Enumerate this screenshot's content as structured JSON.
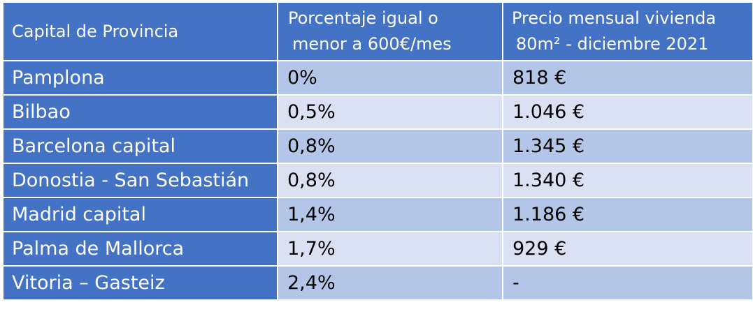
{
  "table": {
    "headers": {
      "col1": "Capital de Provincia",
      "col2_line1": "Porcentaje igual o",
      "col2_line2": "menor a 600€/mes",
      "col3_line1": "Precio mensual vivienda",
      "col3_line2": "80m² - diciembre 2021"
    },
    "rows": [
      {
        "city": "Pamplona",
        "percent": "0%",
        "price": "818 €"
      },
      {
        "city": "Bilbao",
        "percent": "0,5%",
        "price": "1.046 €"
      },
      {
        "city": "Barcelona capital",
        "percent": "0,8%",
        "price": "1.345 €"
      },
      {
        "city": "Donostia - San Sebastián",
        "percent": "0,8%",
        "price": "1.340 €"
      },
      {
        "city": "Madrid capital",
        "percent": "1,4%",
        "price": "1.186 €"
      },
      {
        "city": "Palma de Mallorca",
        "percent": "1,7%",
        "price": "929 €"
      },
      {
        "city": "Vitoria – Gasteiz",
        "percent": "2,4%",
        "price": "-"
      }
    ]
  },
  "colors": {
    "header_bg": "#4472c4",
    "row_odd_bg": "#b4c6e7",
    "row_even_bg": "#d9e1f2"
  }
}
